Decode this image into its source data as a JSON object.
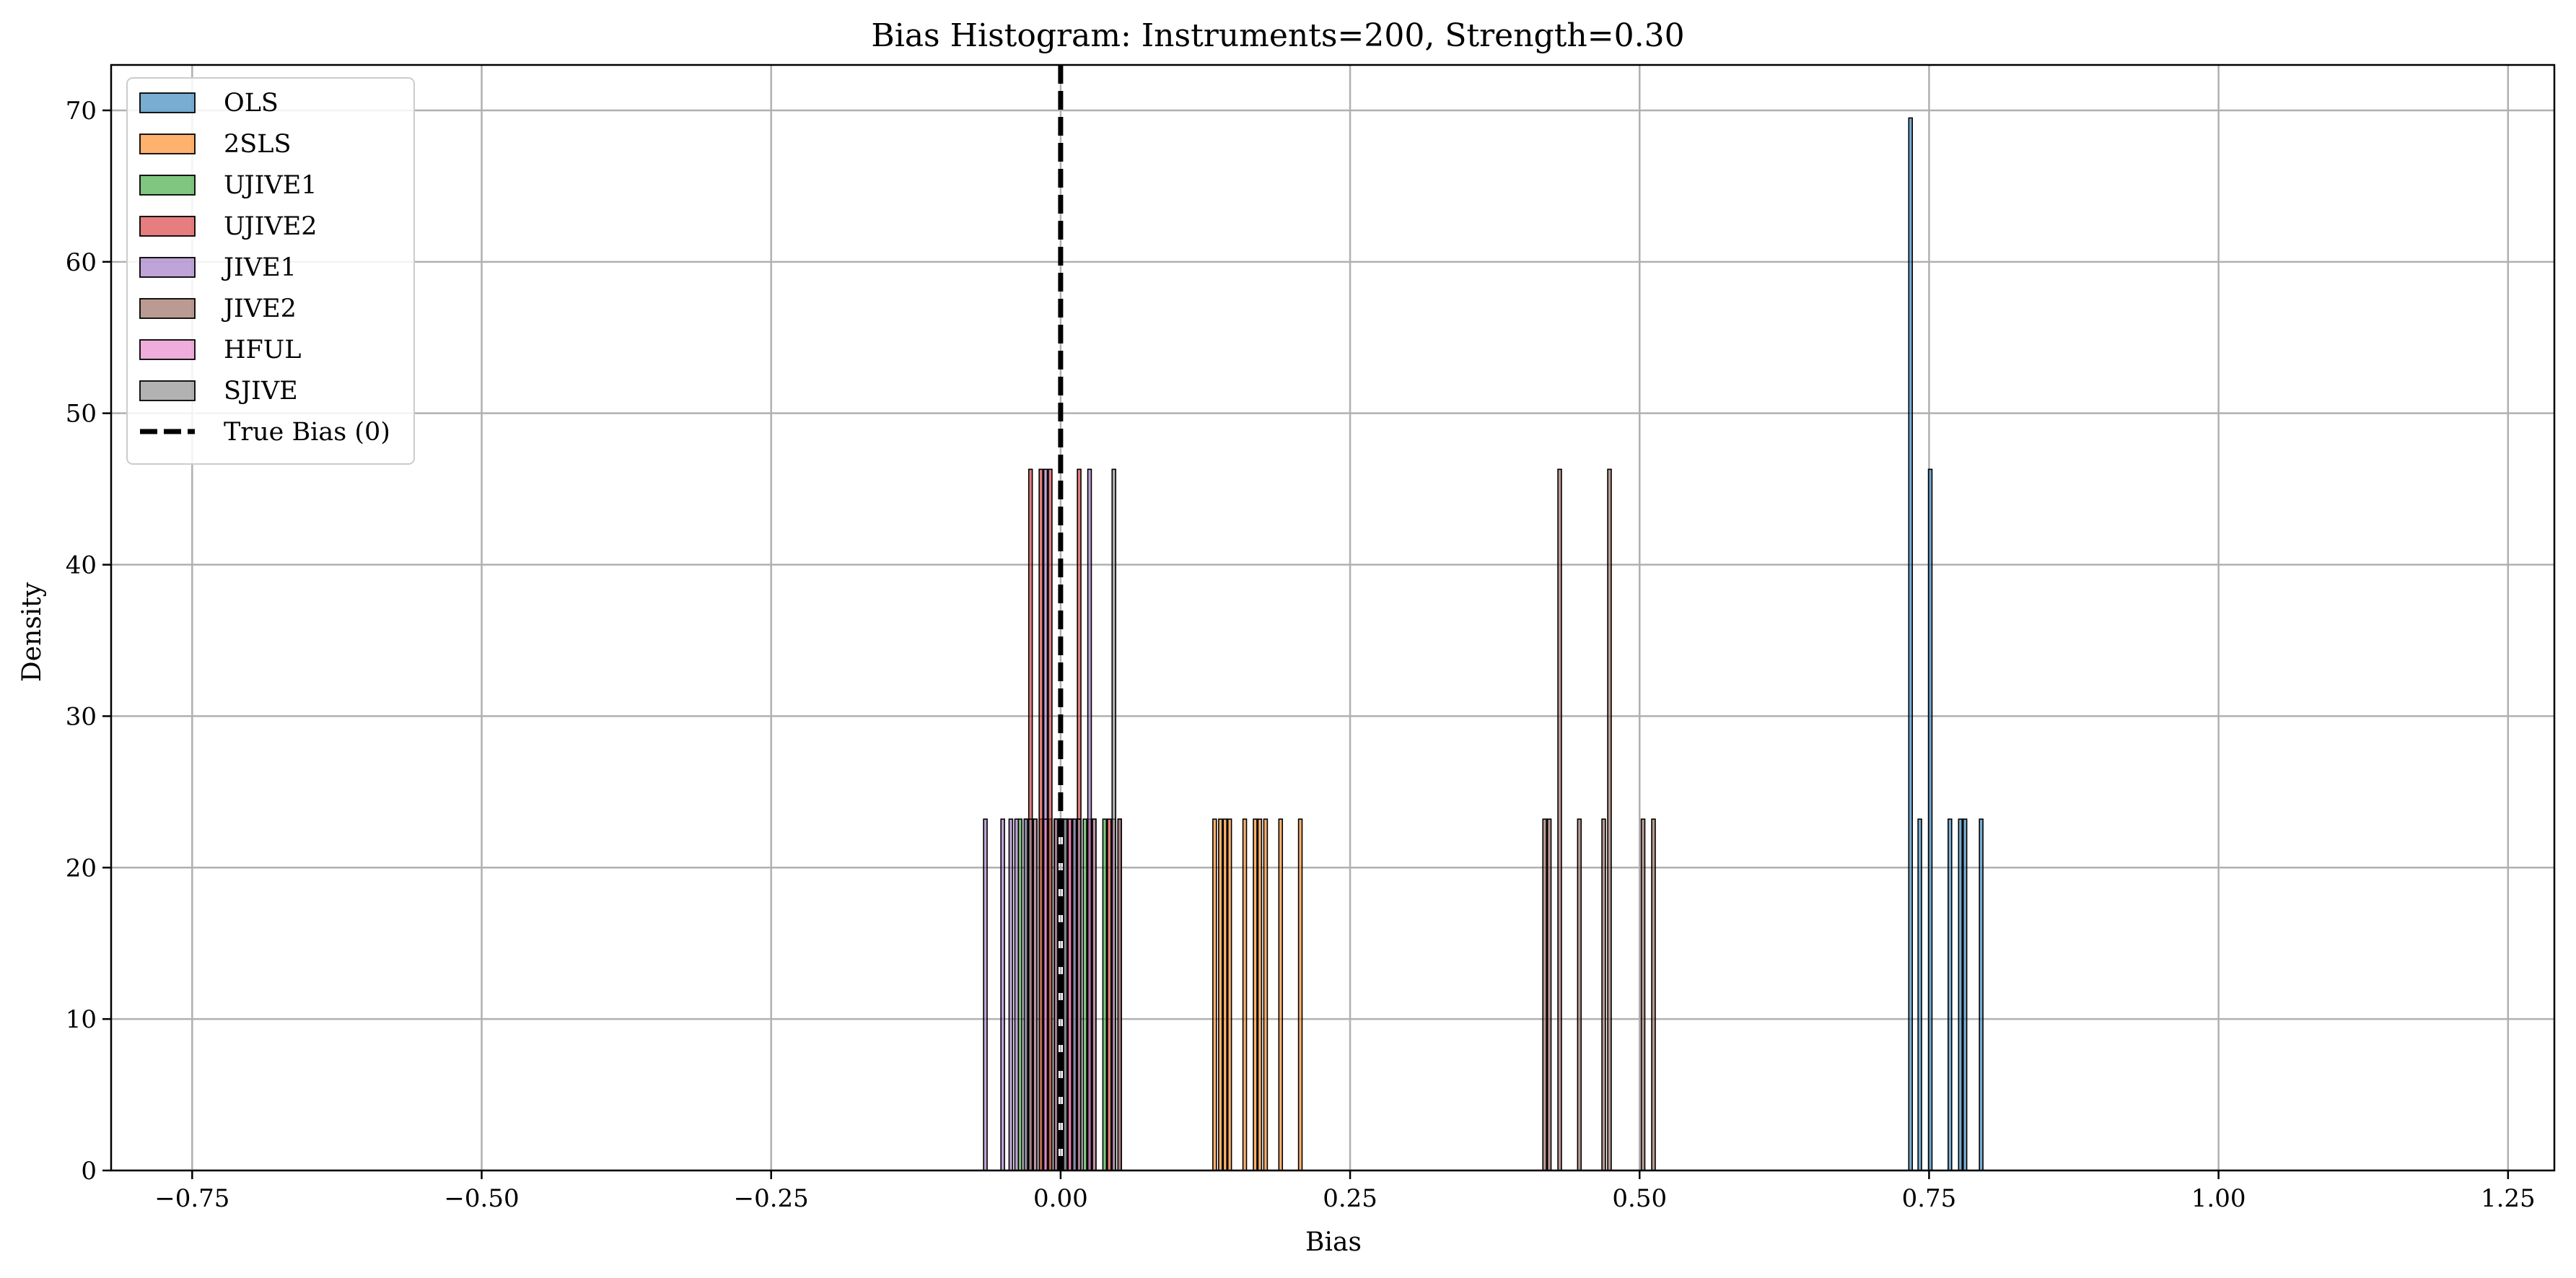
{
  "chart_data": {
    "type": "bar",
    "title": "Bias Histogram: Instruments=200, Strength=0.30",
    "xlabel": "Bias",
    "ylabel": "Density",
    "xlim": [
      -0.82,
      1.29
    ],
    "ylim": [
      0,
      73
    ],
    "xticks": [
      -0.75,
      -0.5,
      -0.25,
      0.0,
      0.25,
      0.5,
      0.75,
      1.0,
      1.25
    ],
    "xtick_labels": [
      "−0.75",
      "−0.50",
      "−0.25",
      "0.00",
      "0.25",
      "0.50",
      "0.75",
      "1.00",
      "1.25"
    ],
    "yticks": [
      0,
      10,
      20,
      30,
      40,
      50,
      60,
      70
    ],
    "ytick_labels": [
      "0",
      "10",
      "20",
      "30",
      "40",
      "50",
      "60",
      "70"
    ],
    "grid": true,
    "legend_position": "top-left",
    "bin_width": 0.0043,
    "reference_line": {
      "x": 0.0,
      "label": "True Bias (0)",
      "color": "#000000",
      "style": "dashed"
    },
    "series": [
      {
        "name": "OLS",
        "color": "#1f77b4",
        "bins": [
          [
            0.734,
            69.5
          ],
          [
            0.742,
            23.2
          ],
          [
            0.751,
            46.3
          ],
          [
            0.768,
            23.2
          ],
          [
            0.777,
            23.2
          ],
          [
            0.781,
            23.2
          ],
          [
            0.795,
            23.2
          ]
        ]
      },
      {
        "name": "2SLS",
        "color": "#ff7f0e",
        "bins": [
          [
            0.133,
            23.2
          ],
          [
            0.138,
            23.2
          ],
          [
            0.142,
            23.2
          ],
          [
            0.146,
            23.2
          ],
          [
            0.159,
            23.2
          ],
          [
            0.168,
            23.2
          ],
          [
            0.172,
            23.2
          ],
          [
            0.177,
            23.2
          ],
          [
            0.19,
            23.2
          ],
          [
            0.207,
            23.2
          ]
        ]
      },
      {
        "name": "UJIVE1",
        "color": "#2ca02c",
        "bins": [
          [
            -0.035,
            23.2
          ],
          [
            -0.03,
            23.2
          ],
          [
            -0.022,
            23.2
          ],
          [
            -0.017,
            23.2
          ],
          [
            -0.009,
            23.2
          ],
          [
            0.004,
            23.2
          ],
          [
            0.012,
            23.2
          ],
          [
            0.021,
            23.2
          ],
          [
            0.029,
            23.2
          ],
          [
            0.038,
            23.2
          ]
        ]
      },
      {
        "name": "UJIVE2",
        "color": "#d62728",
        "bins": [
          [
            -0.026,
            46.3
          ],
          [
            -0.017,
            46.3
          ],
          [
            -0.009,
            46.3
          ],
          [
            -0.004,
            23.2
          ],
          [
            0.008,
            23.2
          ],
          [
            0.016,
            46.3
          ],
          [
            0.025,
            23.2
          ],
          [
            0.042,
            23.2
          ],
          [
            0.051,
            23.2
          ]
        ]
      },
      {
        "name": "JIVE1",
        "color": "#9467bd",
        "bins": [
          [
            -0.065,
            23.2
          ],
          [
            -0.05,
            23.2
          ],
          [
            -0.043,
            23.2
          ],
          [
            -0.038,
            23.2
          ],
          [
            -0.03,
            23.2
          ],
          [
            -0.013,
            46.3
          ],
          [
            -0.004,
            23.2
          ],
          [
            0.004,
            23.2
          ],
          [
            0.012,
            23.2
          ],
          [
            0.025,
            46.3
          ]
        ]
      },
      {
        "name": "JIVE2",
        "color": "#8c564b",
        "bins": [
          [
            0.418,
            23.2
          ],
          [
            0.422,
            23.2
          ],
          [
            0.431,
            46.3
          ],
          [
            0.448,
            23.2
          ],
          [
            0.469,
            23.2
          ],
          [
            0.474,
            46.3
          ],
          [
            0.503,
            23.2
          ],
          [
            0.512,
            23.2
          ]
        ]
      },
      {
        "name": "HFUL",
        "color": "#e377c2",
        "bins": [
          [
            -0.022,
            23.2
          ],
          [
            -0.013,
            23.2
          ],
          [
            -0.004,
            23.2
          ],
          [
            0.008,
            23.2
          ],
          [
            0.016,
            23.2
          ],
          [
            0.029,
            23.2
          ],
          [
            0.046,
            23.2
          ]
        ]
      },
      {
        "name": "SJIVE",
        "color": "#7f7f7f",
        "bins": [
          [
            -0.026,
            23.2
          ],
          [
            -0.004,
            23.2
          ],
          [
            0.004,
            23.2
          ],
          [
            0.016,
            23.2
          ],
          [
            0.046,
            46.3
          ],
          [
            0.051,
            23.2
          ]
        ]
      }
    ]
  }
}
